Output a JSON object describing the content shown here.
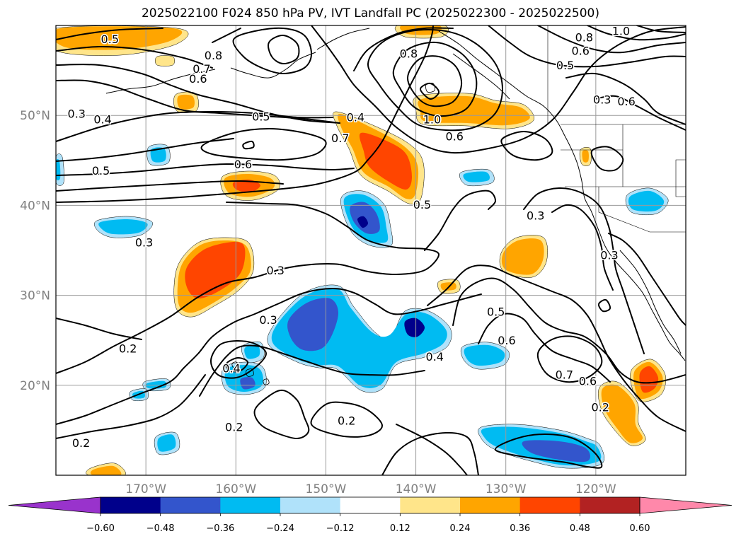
{
  "title": "2025022100 F024 850 hPa PV, IVT Landfall PC (2025022300 - 2025022500)",
  "map": {
    "extent": {
      "lon_min": -180,
      "lon_max": -110,
      "lat_min": 10,
      "lat_max": 60
    },
    "gridlines": true,
    "lon_labels": [
      {
        "lon": -170,
        "text": "170°W"
      },
      {
        "lon": -160,
        "text": "160°W"
      },
      {
        "lon": -150,
        "text": "150°W"
      },
      {
        "lon": -140,
        "text": "140°W"
      },
      {
        "lon": -130,
        "text": "130°W"
      },
      {
        "lon": -120,
        "text": "120°W"
      }
    ],
    "lat_labels": [
      {
        "lat": 50,
        "text": "50°N"
      },
      {
        "lat": 40,
        "text": "40°N"
      },
      {
        "lat": 30,
        "text": "30°N"
      },
      {
        "lat": 20,
        "text": "20°N"
      }
    ],
    "contour_labels": [
      {
        "text": "0.5",
        "lon": -174,
        "lat": 58.5
      },
      {
        "text": "0.8",
        "lon": -162.5,
        "lat": 56.7
      },
      {
        "text": "0.7",
        "lon": -163.8,
        "lat": 55.2
      },
      {
        "text": "0.6",
        "lon": -164.2,
        "lat": 54.1
      },
      {
        "text": "0.8",
        "lon": -140.8,
        "lat": 56.9
      },
      {
        "text": "0.8",
        "lon": -121.3,
        "lat": 58.7
      },
      {
        "text": "0.6",
        "lon": -121.7,
        "lat": 57.2
      },
      {
        "text": "1.0",
        "lon": -117.2,
        "lat": 59.4
      },
      {
        "text": "0.5",
        "lon": -123.4,
        "lat": 55.6
      },
      {
        "text": "0.3",
        "lon": -177.7,
        "lat": 50.2
      },
      {
        "text": "0.4",
        "lon": -174.8,
        "lat": 49.6
      },
      {
        "text": "0.5",
        "lon": -157.2,
        "lat": 49.9
      },
      {
        "text": "0.4",
        "lon": -146.7,
        "lat": 49.8
      },
      {
        "text": "1.0",
        "lon": -138.2,
        "lat": 49.6
      },
      {
        "text": "0.7",
        "lon": -148.4,
        "lat": 47.5
      },
      {
        "text": "0.6",
        "lon": -135.7,
        "lat": 47.7
      },
      {
        "text": "0.3",
        "lon": -119.3,
        "lat": 51.8
      },
      {
        "text": "0.6",
        "lon": -116.6,
        "lat": 51.6
      },
      {
        "text": "0.5",
        "lon": -175,
        "lat": 43.9
      },
      {
        "text": "0.6",
        "lon": -159.2,
        "lat": 44.6
      },
      {
        "text": "0.5",
        "lon": -139.3,
        "lat": 40.1
      },
      {
        "text": "0.3",
        "lon": -126.7,
        "lat": 38.9
      },
      {
        "text": "0.3",
        "lon": -170.2,
        "lat": 35.9
      },
      {
        "text": "0.3",
        "lon": -155.6,
        "lat": 32.8
      },
      {
        "text": "0.3",
        "lon": -118.5,
        "lat": 34.5
      },
      {
        "text": "0.3",
        "lon": -156.4,
        "lat": 27.3
      },
      {
        "text": "0.5",
        "lon": -131.1,
        "lat": 28.2
      },
      {
        "text": "0.6",
        "lon": -129.9,
        "lat": 25
      },
      {
        "text": "0.2",
        "lon": -172,
        "lat": 24.1
      },
      {
        "text": "0.4",
        "lon": -137.9,
        "lat": 23.2
      },
      {
        "text": "0.4",
        "lon": -160.5,
        "lat": 21.9
      },
      {
        "text": "0.7",
        "lon": -123.5,
        "lat": 21.2
      },
      {
        "text": "0.6",
        "lon": -120.9,
        "lat": 20.5
      },
      {
        "text": "0.2",
        "lon": -119.5,
        "lat": 17.6
      },
      {
        "text": "0.2",
        "lon": -160.2,
        "lat": 15.4
      },
      {
        "text": "0.2",
        "lon": -147.7,
        "lat": 16.1
      },
      {
        "text": "0.2",
        "lon": -177.2,
        "lat": 13.6
      }
    ]
  },
  "colorbar": {
    "ticks": [
      "−0.60",
      "−0.48",
      "−0.36",
      "−0.24",
      "−0.12",
      "0.12",
      "0.24",
      "0.36",
      "0.48",
      "0.60"
    ],
    "colors": [
      "#9933cc",
      "#00008b",
      "#3355cc",
      "#00bbf2",
      "#b0e2fa",
      "#ffffff",
      "#ffe58a",
      "#ffa500",
      "#ff4500",
      "#b22222",
      "#ff88aa"
    ]
  },
  "palette": {
    "neg_light": "#b0e2fa",
    "neg_mid": "#00bbf2",
    "neg_strong": "#3355cc",
    "neg_max": "#00008b",
    "pos_light": "#ffe58a",
    "pos_mid": "#ffa500",
    "pos_strong": "#ff4500"
  }
}
